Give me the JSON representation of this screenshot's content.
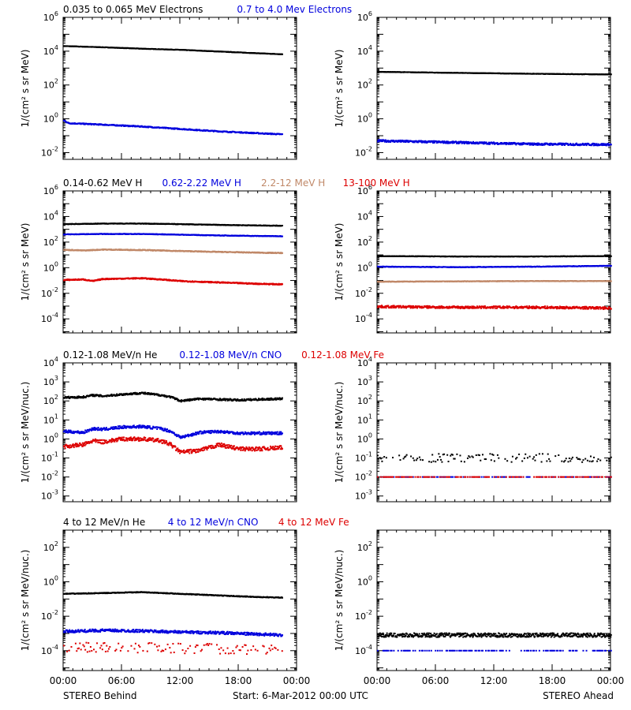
{
  "footer": {
    "left": "STEREO Behind",
    "center": "Start:  6-Mar-2012 00:00 UTC",
    "right": "STEREO Ahead"
  },
  "colors": {
    "black": "#000000",
    "blue": "#0000dd",
    "tan": "#c08868",
    "red": "#dd0000"
  },
  "chart_data": [
    {
      "type": "scatter",
      "title": "0.035 to 0.065 MeV Electrons / 0.7 to 4.0 Mev Electrons",
      "panel": "STEREO Behind",
      "ylabel": "1/(cm² s sr MeV)",
      "yscale": "log",
      "ylim": [
        0.004,
        1000000
      ],
      "xlim": [
        0,
        24
      ],
      "yticks": [
        [
          "10",
          "-2"
        ],
        [
          "10",
          "0"
        ],
        [
          "10",
          "2"
        ],
        [
          "10",
          "4"
        ],
        [
          "10",
          "6"
        ]
      ],
      "xticks": [],
      "labels": [
        {
          "text": "0.035 to 0.065 MeV Electrons",
          "color": "#000000"
        },
        {
          "text": "0.7 to 4.0 Mev Electrons",
          "color": "#0000dd"
        }
      ],
      "series": [
        {
          "name": "0.035 to 0.065 MeV Electrons",
          "color": "#000000",
          "x": [
            0,
            4,
            8,
            12,
            16,
            20,
            22.5
          ],
          "y": [
            20000,
            17000,
            14000,
            12000,
            9500,
            7500,
            6500
          ],
          "jitter": 0.01
        },
        {
          "name": "0.7 to 4.0 Mev Electrons",
          "color": "#0000dd",
          "x": [
            0,
            0.5,
            4,
            8,
            12,
            16,
            20,
            22.5
          ],
          "y": [
            0.8,
            0.55,
            0.45,
            0.35,
            0.25,
            0.18,
            0.14,
            0.12
          ],
          "jitter": 0.03
        }
      ]
    },
    {
      "type": "scatter",
      "panel": "STEREO Ahead",
      "ylabel": "1/(cm² s sr MeV)",
      "yscale": "log",
      "ylim": [
        0.004,
        1000000
      ],
      "xlim": [
        0,
        24
      ],
      "yticks": [
        [
          "10",
          "-2"
        ],
        [
          "10",
          "0"
        ],
        [
          "10",
          "2"
        ],
        [
          "10",
          "4"
        ],
        [
          "10",
          "6"
        ]
      ],
      "xticks": [],
      "labels": [],
      "series": [
        {
          "name": "0.035 to 0.065 MeV Electrons",
          "color": "#000000",
          "x": [
            0,
            8,
            16,
            24
          ],
          "y": [
            600,
            520,
            460,
            420
          ],
          "jitter": 0.01
        },
        {
          "name": "0.7 to 4.0 Mev Electrons",
          "color": "#0000dd",
          "x": [
            0,
            8,
            16,
            24
          ],
          "y": [
            0.05,
            0.04,
            0.032,
            0.03
          ],
          "jitter": 0.06
        }
      ]
    },
    {
      "type": "scatter",
      "panel": "STEREO Behind",
      "ylabel": "1/(cm² s sr MeV)",
      "yscale": "log",
      "ylim": [
        8e-06,
        1000000
      ],
      "xlim": [
        0,
        24
      ],
      "yticks": [
        [
          "10",
          "-4"
        ],
        [
          "10",
          "-2"
        ],
        [
          "10",
          "0"
        ],
        [
          "10",
          "2"
        ],
        [
          "10",
          "4"
        ],
        [
          "10",
          "6"
        ]
      ],
      "xticks": [],
      "labels": [
        {
          "text": "0.14-0.62 MeV H",
          "color": "#000000"
        },
        {
          "text": "0.62-2.22 MeV H",
          "color": "#0000dd"
        },
        {
          "text": "2.2-12 MeV H",
          "color": "#c08868"
        },
        {
          "text": "13-100 MeV H",
          "color": "#dd0000"
        }
      ],
      "series": [
        {
          "name": "0.14-0.62 MeV H",
          "color": "#000000",
          "x": [
            0,
            4,
            8,
            12,
            16,
            20,
            22.5
          ],
          "y": [
            2500,
            2800,
            2800,
            2500,
            2200,
            2000,
            1900
          ],
          "jitter": 0.02
        },
        {
          "name": "0.62-2.22 MeV H",
          "color": "#0000dd",
          "x": [
            0,
            4,
            8,
            12,
            16,
            20,
            22.5
          ],
          "y": [
            400,
            430,
            430,
            380,
            330,
            300,
            290
          ],
          "jitter": 0.02
        },
        {
          "name": "2.2-12 MeV H",
          "color": "#c08868",
          "x": [
            0,
            2,
            4,
            8,
            12,
            16,
            20,
            22.5
          ],
          "y": [
            25,
            22,
            26,
            24,
            20,
            17,
            15,
            14
          ],
          "jitter": 0.03
        },
        {
          "name": "13-100 MeV H",
          "color": "#dd0000",
          "x": [
            0,
            2,
            3,
            4,
            6,
            8,
            10,
            12,
            16,
            20,
            22.5
          ],
          "y": [
            0.11,
            0.12,
            0.09,
            0.13,
            0.14,
            0.15,
            0.12,
            0.09,
            0.07,
            0.055,
            0.05
          ],
          "jitter": 0.04
        }
      ]
    },
    {
      "type": "scatter",
      "panel": "STEREO Ahead",
      "ylabel": "1/(cm² s sr MeV)",
      "yscale": "log",
      "ylim": [
        8e-06,
        1000000
      ],
      "xlim": [
        0,
        24
      ],
      "yticks": [
        [
          "10",
          "-4"
        ],
        [
          "10",
          "-2"
        ],
        [
          "10",
          "0"
        ],
        [
          "10",
          "2"
        ],
        [
          "10",
          "4"
        ],
        [
          "10",
          "6"
        ]
      ],
      "xticks": [],
      "labels": [],
      "series": [
        {
          "name": "0.14-0.62 MeV H",
          "color": "#000000",
          "x": [
            0,
            8,
            16,
            24
          ],
          "y": [
            8,
            7.5,
            7.5,
            8
          ],
          "jitter": 0.015
        },
        {
          "name": "0.62-2.22 MeV H",
          "color": "#0000dd",
          "x": [
            0,
            8,
            16,
            24
          ],
          "y": [
            1.2,
            1.1,
            1.2,
            1.4
          ],
          "jitter": 0.02
        },
        {
          "name": "2.2-12 MeV H",
          "color": "#c08868",
          "x": [
            0,
            8,
            16,
            24
          ],
          "y": [
            0.08,
            0.085,
            0.09,
            0.09
          ],
          "jitter": 0.02
        },
        {
          "name": "13-100 MeV H",
          "color": "#dd0000",
          "x": [
            0,
            8,
            16,
            24
          ],
          "y": [
            0.0009,
            0.0008,
            0.0008,
            0.0007
          ],
          "jitter": 0.09
        }
      ]
    },
    {
      "type": "scatter",
      "panel": "STEREO Behind",
      "ylabel": "1/(cm² s sr MeV/nuc.)",
      "yscale": "log",
      "ylim": [
        0.0005,
        10000
      ],
      "xlim": [
        0,
        24
      ],
      "yticks": [
        [
          "10",
          "-3"
        ],
        [
          "10",
          "-2"
        ],
        [
          "10",
          "-1"
        ],
        [
          "10",
          "0"
        ],
        [
          "10",
          "1"
        ],
        [
          "10",
          "2"
        ],
        [
          "10",
          "3"
        ],
        [
          "10",
          "4"
        ]
      ],
      "xticks": [],
      "labels": [
        {
          "text": "0.12-1.08 MeV/n He",
          "color": "#000000"
        },
        {
          "text": "0.12-1.08 MeV/n CNO",
          "color": "#0000dd"
        },
        {
          "text": "0.12-1.08 MeV Fe",
          "color": "#dd0000"
        }
      ],
      "series": [
        {
          "name": "0.12-1.08 MeV/n He",
          "color": "#000000",
          "x": [
            0,
            2,
            3,
            4,
            6,
            8,
            10,
            11,
            12,
            14,
            16,
            18,
            20,
            22.5
          ],
          "y": [
            150,
            160,
            200,
            180,
            220,
            260,
            200,
            160,
            100,
            130,
            120,
            110,
            120,
            130
          ],
          "jitter": 0.05
        },
        {
          "name": "0.12-1.08 MeV/n CNO",
          "color": "#0000dd",
          "x": [
            0,
            2,
            3,
            4,
            6,
            8,
            10,
            11,
            12,
            14,
            16,
            18,
            20,
            22.5
          ],
          "y": [
            2.5,
            2.2,
            3.5,
            3.2,
            4.2,
            4.5,
            3.5,
            2.5,
            1.2,
            2.2,
            2.5,
            2.0,
            2.0,
            2.0
          ],
          "jitter": 0.07
        },
        {
          "name": "0.12-1.08 MeV Fe",
          "color": "#dd0000",
          "x": [
            0,
            2,
            3,
            4,
            6,
            8,
            10,
            11,
            12,
            14,
            16,
            18,
            20,
            22.5
          ],
          "y": [
            0.4,
            0.5,
            0.8,
            0.7,
            1.0,
            1.0,
            0.8,
            0.5,
            0.2,
            0.25,
            0.5,
            0.3,
            0.3,
            0.35
          ],
          "jitter": 0.1
        }
      ]
    },
    {
      "type": "scatter",
      "panel": "STEREO Ahead",
      "ylabel": "1/(cm² s sr MeV/nuc.)",
      "yscale": "log",
      "ylim": [
        0.0005,
        10000
      ],
      "xlim": [
        0,
        24
      ],
      "yticks": [
        [
          "10",
          "-3"
        ],
        [
          "10",
          "-2"
        ],
        [
          "10",
          "-1"
        ],
        [
          "10",
          "0"
        ],
        [
          "10",
          "1"
        ],
        [
          "10",
          "2"
        ],
        [
          "10",
          "3"
        ],
        [
          "10",
          "4"
        ]
      ],
      "xticks": [],
      "labels": [],
      "series": [
        {
          "name": "0.12-1.08 MeV/n He",
          "color": "#000000",
          "x": [
            0,
            8,
            16,
            24
          ],
          "y": [
            0.1,
            0.1,
            0.1,
            0.1
          ],
          "jitter": 0.22,
          "sparse": true
        },
        {
          "name": "0.12-1.08 MeV/n CNO",
          "color": "#0000dd",
          "x": [
            0,
            8,
            16,
            24
          ],
          "y": [
            0.01,
            0.01,
            0.01,
            0.01
          ],
          "jitter": 0.0,
          "sparse": true
        },
        {
          "name": "0.12-1.08 MeV Fe",
          "color": "#dd0000",
          "x": [
            0,
            8,
            16,
            24
          ],
          "y": [
            0.01,
            0.01,
            0.01,
            0.01
          ],
          "jitter": 0.0,
          "sparse": true
        }
      ]
    },
    {
      "type": "scatter",
      "panel": "STEREO Behind",
      "ylabel": "1/(cm² s sr MeV/nuc.)",
      "yscale": "log",
      "ylim": [
        7e-06,
        1000
      ],
      "xlim": [
        0,
        24
      ],
      "yticks": [
        [
          "10",
          "-4"
        ],
        [
          "10",
          "-2"
        ],
        [
          "10",
          "0"
        ],
        [
          "10",
          "2"
        ]
      ],
      "xticks": [
        "00:00",
        "06:00",
        "12:00",
        "18:00",
        "00:00"
      ],
      "labels": [
        {
          "text": "4 to 12 MeV/n He",
          "color": "#000000"
        },
        {
          "text": "4 to 12 MeV/n CNO",
          "color": "#0000dd"
        },
        {
          "text": "4 to 12 MeV Fe",
          "color": "#dd0000"
        }
      ],
      "series": [
        {
          "name": "4 to 12 MeV/n He",
          "color": "#000000",
          "x": [
            0,
            4,
            8,
            12,
            16,
            20,
            22.5
          ],
          "y": [
            0.2,
            0.22,
            0.25,
            0.2,
            0.16,
            0.13,
            0.12
          ],
          "jitter": 0.02
        },
        {
          "name": "4 to 12 MeV/n CNO",
          "color": "#0000dd",
          "x": [
            0,
            4,
            8,
            12,
            16,
            20,
            22.5
          ],
          "y": [
            0.0013,
            0.0015,
            0.0014,
            0.0012,
            0.0011,
            0.0009,
            0.0008
          ],
          "jitter": 0.08
        },
        {
          "name": "4 to 12 MeV Fe",
          "color": "#dd0000",
          "x": [
            0,
            8,
            16,
            22.5
          ],
          "y": [
            0.00015,
            0.00015,
            0.00013,
            0.00012
          ],
          "jitter": 0.3,
          "sparse": true
        }
      ]
    },
    {
      "type": "scatter",
      "panel": "STEREO Ahead",
      "ylabel": "1/(cm² s sr MeV/nuc.)",
      "yscale": "log",
      "ylim": [
        7e-06,
        1000
      ],
      "xlim": [
        0,
        24
      ],
      "yticks": [
        [
          "10",
          "-4"
        ],
        [
          "10",
          "-2"
        ],
        [
          "10",
          "0"
        ],
        [
          "10",
          "2"
        ]
      ],
      "xticks": [
        "00:00",
        "06:00",
        "12:00",
        "18:00",
        "00:00"
      ],
      "labels": [],
      "series": [
        {
          "name": "4 to 12 MeV/n He",
          "color": "#000000",
          "x": [
            0,
            8,
            16,
            24
          ],
          "y": [
            0.0008,
            0.0008,
            0.0008,
            0.0008
          ],
          "jitter": 0.12
        },
        {
          "name": "4 to 12 MeV/n CNO",
          "color": "#0000dd",
          "x": [
            0,
            8,
            16,
            24
          ],
          "y": [
            0.0001,
            0.0001,
            0.0001,
            0.0001
          ],
          "jitter": 0.0,
          "sparse": true
        }
      ]
    }
  ]
}
